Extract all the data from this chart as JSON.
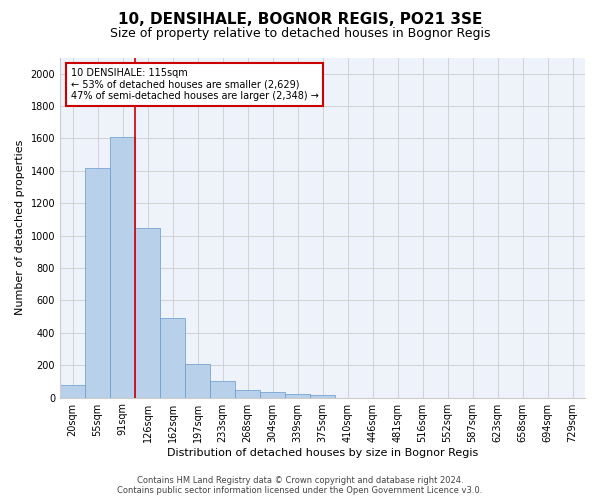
{
  "title": "10, DENSIHALE, BOGNOR REGIS, PO21 3SE",
  "subtitle": "Size of property relative to detached houses in Bognor Regis",
  "xlabel": "Distribution of detached houses by size in Bognor Regis",
  "ylabel": "Number of detached properties",
  "footer_line1": "Contains HM Land Registry data © Crown copyright and database right 2024.",
  "footer_line2": "Contains public sector information licensed under the Open Government Licence v3.0.",
  "bar_labels": [
    "20sqm",
    "55sqm",
    "91sqm",
    "126sqm",
    "162sqm",
    "197sqm",
    "233sqm",
    "268sqm",
    "304sqm",
    "339sqm",
    "375sqm",
    "410sqm",
    "446sqm",
    "481sqm",
    "516sqm",
    "552sqm",
    "587sqm",
    "623sqm",
    "658sqm",
    "694sqm",
    "729sqm"
  ],
  "bar_values": [
    80,
    1420,
    1610,
    1050,
    490,
    205,
    100,
    45,
    35,
    25,
    15,
    0,
    0,
    0,
    0,
    0,
    0,
    0,
    0,
    0,
    0
  ],
  "bar_color": "#b8d0ea",
  "bar_edgecolor": "#6699cc",
  "vline_x": 2.5,
  "vline_color": "#cc0000",
  "annotation_text": "10 DENSIHALE: 115sqm\n← 53% of detached houses are smaller (2,629)\n47% of semi-detached houses are larger (2,348) →",
  "annotation_box_color": "#cc0000",
  "ylim": [
    0,
    2100
  ],
  "yticks": [
    0,
    200,
    400,
    600,
    800,
    1000,
    1200,
    1400,
    1600,
    1800,
    2000
  ],
  "grid_color": "#cccccc",
  "bg_color": "#eef2fb",
  "title_fontsize": 11,
  "subtitle_fontsize": 9,
  "ylabel_fontsize": 8,
  "xlabel_fontsize": 8,
  "tick_fontsize": 7,
  "annotation_fontsize": 7,
  "footer_fontsize": 6
}
